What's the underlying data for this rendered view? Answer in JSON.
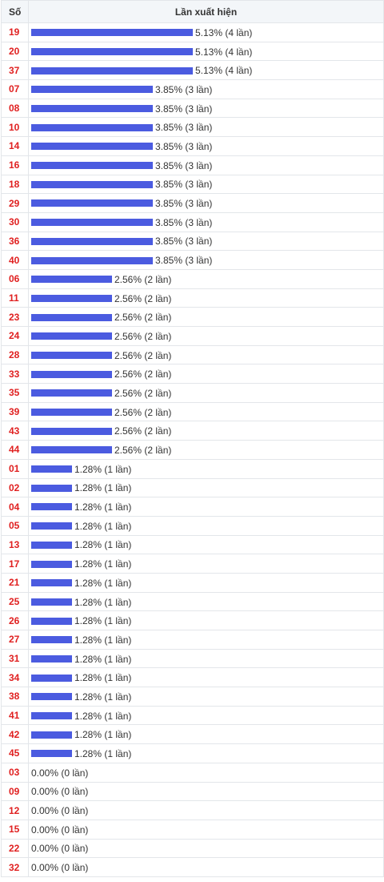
{
  "header": {
    "col_number": "Số",
    "col_frequency": "Lần xuất hiện"
  },
  "colors": {
    "bar": "#4b5be0",
    "number": "#e02020"
  },
  "rows": [
    {
      "number": "19",
      "text": "5.13% (4 lần)",
      "fraction": 1.0
    },
    {
      "number": "20",
      "text": "5.13% (4 lần)",
      "fraction": 1.0
    },
    {
      "number": "37",
      "text": "5.13% (4 lần)",
      "fraction": 1.0
    },
    {
      "number": "07",
      "text": "3.85% (3 lần)",
      "fraction": 0.75
    },
    {
      "number": "08",
      "text": "3.85% (3 lần)",
      "fraction": 0.75
    },
    {
      "number": "10",
      "text": "3.85% (3 lần)",
      "fraction": 0.75
    },
    {
      "number": "14",
      "text": "3.85% (3 lần)",
      "fraction": 0.75
    },
    {
      "number": "16",
      "text": "3.85% (3 lần)",
      "fraction": 0.75
    },
    {
      "number": "18",
      "text": "3.85% (3 lần)",
      "fraction": 0.75
    },
    {
      "number": "29",
      "text": "3.85% (3 lần)",
      "fraction": 0.75
    },
    {
      "number": "30",
      "text": "3.85% (3 lần)",
      "fraction": 0.75
    },
    {
      "number": "36",
      "text": "3.85% (3 lần)",
      "fraction": 0.75
    },
    {
      "number": "40",
      "text": "3.85% (3 lần)",
      "fraction": 0.75
    },
    {
      "number": "06",
      "text": "2.56% (2 lần)",
      "fraction": 0.5
    },
    {
      "number": "11",
      "text": "2.56% (2 lần)",
      "fraction": 0.5
    },
    {
      "number": "23",
      "text": "2.56% (2 lần)",
      "fraction": 0.5
    },
    {
      "number": "24",
      "text": "2.56% (2 lần)",
      "fraction": 0.5
    },
    {
      "number": "28",
      "text": "2.56% (2 lần)",
      "fraction": 0.5
    },
    {
      "number": "33",
      "text": "2.56% (2 lần)",
      "fraction": 0.5
    },
    {
      "number": "35",
      "text": "2.56% (2 lần)",
      "fraction": 0.5
    },
    {
      "number": "39",
      "text": "2.56% (2 lần)",
      "fraction": 0.5
    },
    {
      "number": "43",
      "text": "2.56% (2 lần)",
      "fraction": 0.5
    },
    {
      "number": "44",
      "text": "2.56% (2 lần)",
      "fraction": 0.5
    },
    {
      "number": "01",
      "text": "1.28% (1 lần)",
      "fraction": 0.25
    },
    {
      "number": "02",
      "text": "1.28% (1 lần)",
      "fraction": 0.25
    },
    {
      "number": "04",
      "text": "1.28% (1 lần)",
      "fraction": 0.25
    },
    {
      "number": "05",
      "text": "1.28% (1 lần)",
      "fraction": 0.25
    },
    {
      "number": "13",
      "text": "1.28% (1 lần)",
      "fraction": 0.25
    },
    {
      "number": "17",
      "text": "1.28% (1 lần)",
      "fraction": 0.25
    },
    {
      "number": "21",
      "text": "1.28% (1 lần)",
      "fraction": 0.25
    },
    {
      "number": "25",
      "text": "1.28% (1 lần)",
      "fraction": 0.25
    },
    {
      "number": "26",
      "text": "1.28% (1 lần)",
      "fraction": 0.25
    },
    {
      "number": "27",
      "text": "1.28% (1 lần)",
      "fraction": 0.25
    },
    {
      "number": "31",
      "text": "1.28% (1 lần)",
      "fraction": 0.25
    },
    {
      "number": "34",
      "text": "1.28% (1 lần)",
      "fraction": 0.25
    },
    {
      "number": "38",
      "text": "1.28% (1 lần)",
      "fraction": 0.25
    },
    {
      "number": "41",
      "text": "1.28% (1 lần)",
      "fraction": 0.25
    },
    {
      "number": "42",
      "text": "1.28% (1 lần)",
      "fraction": 0.25
    },
    {
      "number": "45",
      "text": "1.28% (1 lần)",
      "fraction": 0.25
    },
    {
      "number": "03",
      "text": "0.00% (0 lần)",
      "fraction": 0
    },
    {
      "number": "09",
      "text": "0.00% (0 lần)",
      "fraction": 0
    },
    {
      "number": "12",
      "text": "0.00% (0 lần)",
      "fraction": 0
    },
    {
      "number": "15",
      "text": "0.00% (0 lần)",
      "fraction": 0
    },
    {
      "number": "22",
      "text": "0.00% (0 lần)",
      "fraction": 0
    },
    {
      "number": "32",
      "text": "0.00% (0 lần)",
      "fraction": 0
    }
  ]
}
